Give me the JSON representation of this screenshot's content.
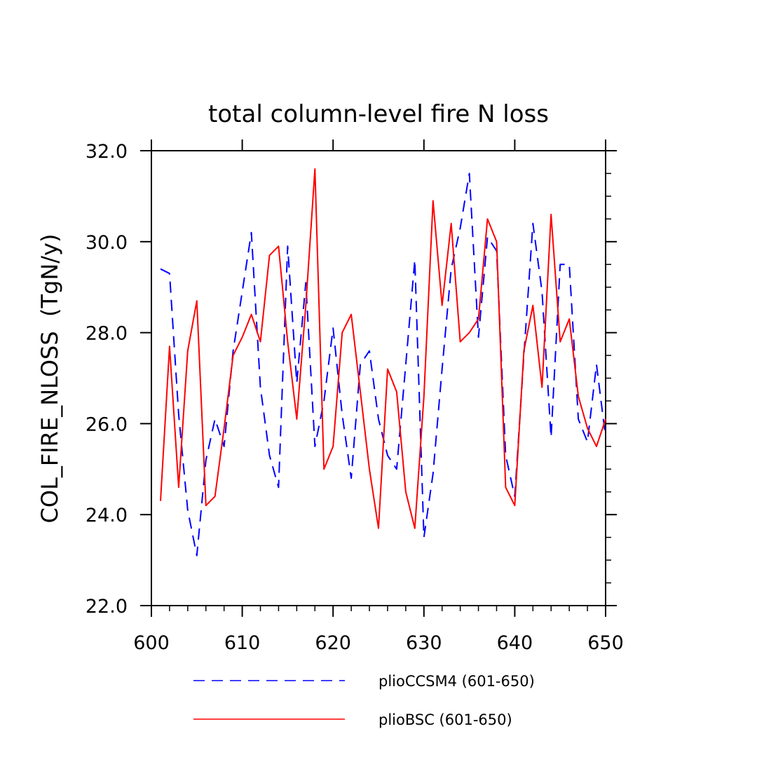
{
  "chart_data": {
    "type": "line",
    "title": "total column-level fire N loss",
    "xlabel": "",
    "ylabel": "COL_FIRE_NLOSS  (TgN/y)",
    "xlim": [
      600,
      650
    ],
    "ylim": [
      22,
      32
    ],
    "xticks": [
      "600",
      "610",
      "620",
      "630",
      "640",
      "650"
    ],
    "yticks": [
      "22.0",
      "24.0",
      "26.0",
      "28.0",
      "30.0",
      "32.0"
    ],
    "x": [
      601,
      602,
      603,
      604,
      605,
      606,
      607,
      608,
      609,
      610,
      611,
      612,
      613,
      614,
      615,
      616,
      617,
      618,
      619,
      620,
      621,
      622,
      623,
      624,
      625,
      626,
      627,
      628,
      629,
      630,
      631,
      632,
      633,
      634,
      635,
      636,
      637,
      638,
      639,
      640,
      641,
      642,
      643,
      644,
      645,
      646,
      647,
      648,
      649,
      650
    ],
    "series": [
      {
        "name": "plioCCSM4 (601-650)",
        "color": "#0000ff",
        "dash": "dashed",
        "values": [
          29.4,
          29.3,
          26.2,
          24.1,
          23.1,
          25.2,
          26.1,
          25.5,
          27.6,
          28.9,
          30.2,
          26.8,
          25.3,
          24.6,
          29.9,
          26.9,
          29.1,
          25.5,
          26.5,
          28.1,
          26.2,
          24.8,
          27.3,
          27.6,
          26.1,
          25.3,
          25.0,
          27.3,
          29.6,
          23.5,
          24.9,
          27.2,
          29.4,
          30.3,
          31.5,
          27.9,
          30.1,
          29.8,
          25.3,
          24.4,
          27.5,
          30.4,
          28.9,
          25.7,
          29.5,
          29.5,
          26.1,
          25.6,
          27.3,
          25.7
        ]
      },
      {
        "name": "plioBSC (601-650)",
        "color": "#ff0000",
        "dash": "solid",
        "values": [
          24.3,
          27.7,
          24.6,
          27.6,
          28.7,
          24.2,
          24.4,
          25.9,
          27.5,
          27.9,
          28.4,
          27.8,
          29.7,
          29.9,
          27.8,
          26.1,
          28.6,
          31.6,
          25.0,
          25.5,
          28.0,
          28.4,
          26.7,
          25.0,
          23.7,
          27.2,
          26.7,
          24.5,
          23.7,
          26.6,
          30.9,
          28.6,
          30.4,
          27.8,
          28.0,
          28.3,
          30.5,
          30.0,
          24.6,
          24.2,
          27.6,
          28.6,
          26.8,
          30.6,
          27.8,
          28.3,
          26.6,
          25.9,
          25.5,
          26.1
        ]
      }
    ],
    "legend_position": "bottom",
    "grid": false
  }
}
